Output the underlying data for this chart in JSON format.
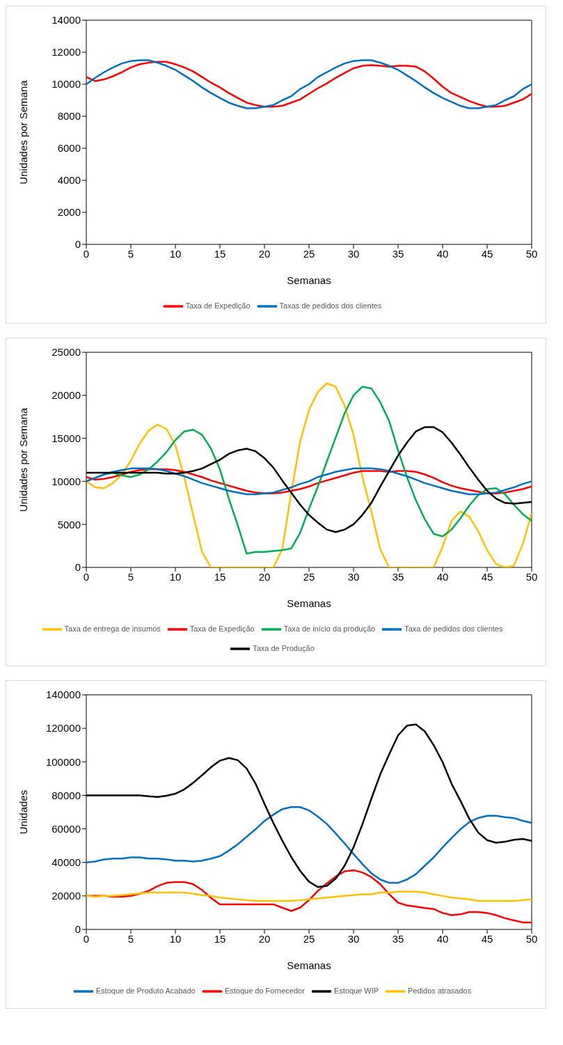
{
  "chart_data": [
    {
      "type": "line",
      "xlabel": "Semanas",
      "ylabel": "Unidades por Semana",
      "legend": "bottom",
      "xlim": [
        0,
        50
      ],
      "xticks": [
        0,
        5,
        10,
        15,
        20,
        25,
        30,
        35,
        40,
        45,
        50
      ],
      "ylim": [
        0,
        14000
      ],
      "yticks": [
        0,
        2000,
        4000,
        6000,
        8000,
        10000,
        12000,
        14000
      ],
      "x": [
        0,
        1,
        2,
        3,
        4,
        5,
        6,
        7,
        8,
        9,
        10,
        11,
        12,
        13,
        14,
        15,
        16,
        17,
        18,
        19,
        20,
        21,
        22,
        23,
        24,
        25,
        26,
        27,
        28,
        29,
        30,
        31,
        32,
        33,
        34,
        35,
        36,
        37,
        38,
        39,
        40,
        41,
        42,
        43,
        44,
        45,
        46,
        47,
        48,
        49,
        50
      ],
      "series": [
        {
          "name": "Taxa de Expedição",
          "color": "#ff0000",
          "values": [
            10450,
            10200,
            10300,
            10500,
            10750,
            11050,
            11250,
            11350,
            11400,
            11400,
            11250,
            11050,
            10800,
            10450,
            10100,
            9800,
            9450,
            9150,
            8850,
            8700,
            8600,
            8600,
            8650,
            8850,
            9050,
            9400,
            9750,
            10050,
            10400,
            10700,
            11000,
            11150,
            11200,
            11150,
            11100,
            11150,
            11150,
            11100,
            10800,
            10350,
            9850,
            9450,
            9200,
            8950,
            8750,
            8600,
            8600,
            8650,
            8850,
            9050,
            9400
          ]
        },
        {
          "name": "Taxas de pedidos dos clientes",
          "color": "#0070c0",
          "values": [
            10000,
            10400,
            10750,
            11050,
            11300,
            11450,
            11500,
            11500,
            11350,
            11150,
            10900,
            10550,
            10200,
            9800,
            9450,
            9150,
            8850,
            8650,
            8500,
            8500,
            8600,
            8700,
            9000,
            9250,
            9700,
            10000,
            10450,
            10750,
            11050,
            11300,
            11450,
            11500,
            11500,
            11350,
            11150,
            10900,
            10550,
            10200,
            9800,
            9450,
            9150,
            8900,
            8650,
            8500,
            8500,
            8600,
            8700,
            9000,
            9250,
            9700,
            10000
          ]
        }
      ]
    },
    {
      "type": "line",
      "xlabel": "Semanas",
      "ylabel": "Unidades por Semana",
      "legend": "bottom",
      "xlim": [
        0,
        50
      ],
      "xticks": [
        0,
        5,
        10,
        15,
        20,
        25,
        30,
        35,
        40,
        45,
        50
      ],
      "ylim": [
        0,
        25000
      ],
      "yticks": [
        0,
        5000,
        10000,
        15000,
        20000,
        25000
      ],
      "x": [
        0,
        1,
        2,
        3,
        4,
        5,
        6,
        7,
        8,
        9,
        10,
        11,
        12,
        13,
        14,
        15,
        16,
        17,
        18,
        19,
        20,
        21,
        22,
        23,
        24,
        25,
        26,
        27,
        28,
        29,
        30,
        31,
        32,
        33,
        34,
        35,
        36,
        37,
        38,
        39,
        40,
        41,
        42,
        43,
        44,
        45,
        46,
        47,
        48,
        49,
        50
      ],
      "series": [
        {
          "name": "Taxa de entrega de insumos",
          "color": "#ffc000",
          "values": [
            10000,
            9300,
            9200,
            9800,
            10800,
            12400,
            14400,
            15900,
            16600,
            16100,
            14200,
            10500,
            6100,
            1800,
            0,
            0,
            0,
            0,
            0,
            0,
            0,
            0,
            2100,
            8600,
            14600,
            18300,
            20400,
            21400,
            21000,
            18800,
            15400,
            10500,
            6500,
            2100,
            0,
            0,
            0,
            0,
            0,
            0,
            2400,
            5400,
            6500,
            5900,
            4200,
            2000,
            400,
            0,
            200,
            2700,
            6300
          ]
        },
        {
          "name": "Taxa de Expedição",
          "color": "#ff0000",
          "values": [
            10500,
            10200,
            10300,
            10500,
            10800,
            11100,
            11300,
            11400,
            11400,
            11400,
            11300,
            11100,
            10800,
            10500,
            10100,
            9800,
            9500,
            9200,
            8900,
            8700,
            8600,
            8600,
            8700,
            8900,
            9100,
            9400,
            9800,
            10100,
            10400,
            10700,
            11000,
            11200,
            11200,
            11200,
            11100,
            11200,
            11200,
            11100,
            10800,
            10400,
            9900,
            9500,
            9200,
            9000,
            8800,
            8600,
            8600,
            8700,
            8900,
            9100,
            9400
          ]
        },
        {
          "name": "Taxa de início da produção",
          "color": "#00b050",
          "values": [
            10000,
            10400,
            10800,
            11000,
            10700,
            10500,
            10800,
            11400,
            12300,
            13400,
            14800,
            15800,
            16000,
            15400,
            13800,
            11400,
            8000,
            4900,
            1600,
            1800,
            1800,
            1900,
            2000,
            2200,
            4000,
            6800,
            9400,
            12300,
            15100,
            17900,
            20000,
            21000,
            20800,
            19200,
            17000,
            13600,
            10500,
            7800,
            5600,
            3900,
            3600,
            4400,
            5700,
            7200,
            8400,
            9100,
            9200,
            8500,
            7300,
            6200,
            5400
          ]
        },
        {
          "name": "Taxa de pedidos dos clientes",
          "color": "#0070c0",
          "values": [
            10000,
            10400,
            10800,
            11100,
            11300,
            11500,
            11500,
            11500,
            11400,
            11200,
            10900,
            10600,
            10200,
            9800,
            9500,
            9200,
            8900,
            8700,
            8500,
            8500,
            8600,
            8700,
            9000,
            9300,
            9700,
            10000,
            10500,
            10800,
            11100,
            11300,
            11500,
            11500,
            11500,
            11400,
            11200,
            10900,
            10600,
            10200,
            9800,
            9500,
            9200,
            8900,
            8700,
            8500,
            8500,
            8600,
            8700,
            9000,
            9300,
            9700,
            10000
          ]
        },
        {
          "name": "Taxa de Produção",
          "color": "#000000",
          "values": [
            11000,
            11000,
            11000,
            11000,
            11000,
            11000,
            11000,
            11000,
            11000,
            10900,
            10900,
            11000,
            11200,
            11500,
            12000,
            12500,
            13200,
            13600,
            13800,
            13500,
            12700,
            11600,
            10100,
            8700,
            7300,
            6100,
            5200,
            4400,
            4100,
            4400,
            5000,
            6100,
            7500,
            9400,
            11200,
            13000,
            14500,
            15800,
            16300,
            16300,
            15700,
            14500,
            13100,
            11600,
            10200,
            8900,
            8000,
            7500,
            7400,
            7500,
            7600
          ]
        }
      ]
    },
    {
      "type": "line",
      "xlabel": "Semanas",
      "ylabel": "Unidades",
      "legend": "bottom",
      "xlim": [
        0,
        50
      ],
      "xticks": [
        0,
        5,
        10,
        15,
        20,
        25,
        30,
        35,
        40,
        45,
        50
      ],
      "ylim": [
        0,
        140000
      ],
      "yticks": [
        0,
        20000,
        40000,
        60000,
        80000,
        100000,
        120000,
        140000
      ],
      "x": [
        0,
        1,
        2,
        3,
        4,
        5,
        6,
        7,
        8,
        9,
        10,
        11,
        12,
        13,
        14,
        15,
        16,
        17,
        18,
        19,
        20,
        21,
        22,
        23,
        24,
        25,
        26,
        27,
        28,
        29,
        30,
        31,
        32,
        33,
        34,
        35,
        36,
        37,
        38,
        39,
        40,
        41,
        42,
        43,
        44,
        45,
        46,
        47,
        48,
        49,
        50
      ],
      "series": [
        {
          "name": "Estoque de Produto Acabado",
          "color": "#0070c0",
          "values": [
            40000,
            40500,
            41800,
            42300,
            42300,
            43000,
            43000,
            42300,
            42300,
            41800,
            41000,
            41000,
            40500,
            41000,
            42300,
            43700,
            47000,
            50800,
            55300,
            59800,
            64700,
            68500,
            71800,
            73000,
            73000,
            71000,
            67300,
            63000,
            57300,
            51300,
            45000,
            39000,
            33500,
            29800,
            27800,
            27800,
            29800,
            33000,
            38000,
            43000,
            49000,
            54500,
            59800,
            64000,
            66500,
            67800,
            67800,
            67000,
            66500,
            64800,
            63600
          ]
        },
        {
          "name": "Estoque do Fornecedor",
          "color": "#ff0000",
          "values": [
            20000,
            20000,
            20000,
            19500,
            19500,
            20000,
            21300,
            23000,
            25800,
            27800,
            28300,
            28300,
            27000,
            23500,
            18800,
            15000,
            15000,
            15000,
            15000,
            15000,
            15000,
            15000,
            13000,
            11000,
            13000,
            17500,
            23000,
            27500,
            31500,
            34700,
            35300,
            34000,
            31300,
            27000,
            21000,
            16000,
            14300,
            13600,
            12800,
            12200,
            9800,
            8500,
            9000,
            10400,
            10400,
            9800,
            8500,
            6700,
            5400,
            4200,
            4200
          ]
        },
        {
          "name": "Estoque WIP",
          "color": "#000000",
          "values": [
            80000,
            80000,
            80000,
            80000,
            80000,
            80000,
            80000,
            79500,
            79000,
            79800,
            81000,
            83600,
            87500,
            92000,
            96800,
            100700,
            102300,
            101000,
            96000,
            87000,
            75000,
            63500,
            53000,
            43300,
            35000,
            28500,
            25300,
            26000,
            30300,
            38000,
            49000,
            62800,
            78000,
            92500,
            104500,
            115800,
            121600,
            122300,
            118200,
            110000,
            99800,
            87000,
            76800,
            66000,
            57800,
            53300,
            51700,
            52300,
            53500,
            54000,
            52800
          ]
        },
        {
          "name": "Pedidos atrasados",
          "color": "#ffc000",
          "values": [
            20000,
            19500,
            20000,
            20000,
            20500,
            21000,
            21500,
            22000,
            22000,
            22000,
            22000,
            22000,
            21300,
            20500,
            20000,
            19000,
            18500,
            18000,
            17500,
            17000,
            17000,
            17000,
            17000,
            17000,
            17500,
            18000,
            18500,
            19000,
            19500,
            20000,
            20500,
            21000,
            21000,
            22000,
            22000,
            22500,
            22500,
            22500,
            22000,
            21000,
            20000,
            19000,
            18500,
            18000,
            17000,
            17000,
            17000,
            17000,
            17000,
            17500,
            18000
          ]
        }
      ]
    }
  ]
}
